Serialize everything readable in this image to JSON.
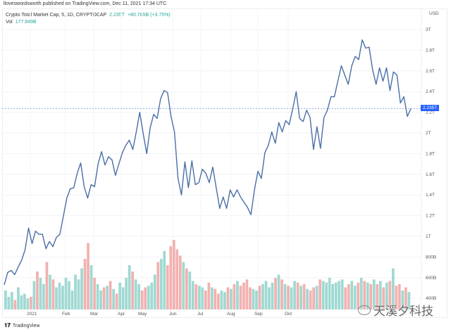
{
  "published": "lloveswordsworth published on TradingView.com, Dec 11, 2021 17:34 UTC",
  "legend": {
    "symbol": "Crypto Total Market Cap, 5, 1D, CRYPTOCAP",
    "last": "2.235T",
    "change": "+80.765B (+3.75%)",
    "vol_label": "Vol",
    "vol_value": "177.649B"
  },
  "footer": {
    "brand": "TradingView"
  },
  "watermark": "天溪夕科技",
  "colors": {
    "line": "#4a6fa5",
    "up": "#26a69a",
    "down": "#ef5350",
    "price_tag": "#2962ff"
  },
  "chart_data": {
    "type": "line",
    "title": "Crypto Total Market Cap, 5, 1D, CRYPTOCAP",
    "ylabel": "USD",
    "y_unit": "T",
    "ylim": [
      0.4,
      3.05
    ],
    "yticks": [
      "3T",
      "2.8T",
      "2.6T",
      "2.4T",
      "2.2T",
      "2T",
      "1.8T",
      "1.6T",
      "1.4T",
      "1.2T",
      "1T",
      "800B",
      "600B",
      "400B"
    ],
    "ytick_values": [
      3,
      2.8,
      2.6,
      2.4,
      2.2,
      2,
      1.8,
      1.6,
      1.4,
      1.2,
      1,
      0.8,
      0.6,
      0.4
    ],
    "xticks": [
      "2021",
      "Feb",
      "Mar",
      "Apr",
      "May",
      "Jun",
      "Jul",
      "Aug",
      "Sep",
      "Oct"
    ],
    "last_price_label": "2.235T",
    "last_price": 2.235,
    "grid": true,
    "series": [
      {
        "values": [
          0.53,
          0.65,
          0.67,
          0.63,
          0.7,
          0.77,
          0.87,
          1.08,
          0.93,
          1.05,
          1.02,
          1.02,
          0.88,
          0.95,
          0.9,
          0.99,
          1.02,
          1.19,
          1.37,
          1.46,
          1.47,
          1.61,
          1.71,
          1.48,
          1.37,
          1.5,
          1.48,
          1.7,
          1.82,
          1.69,
          1.77,
          1.74,
          1.59,
          1.7,
          1.81,
          1.88,
          1.93,
          1.84,
          2.01,
          2.2,
          1.99,
          1.8,
          2.05,
          2.18,
          2.14,
          2.33,
          2.41,
          2.39,
          2.16,
          2.01,
          1.56,
          1.4,
          1.72,
          1.47,
          1.73,
          1.5,
          1.52,
          1.65,
          1.61,
          1.52,
          1.67,
          1.47,
          1.27,
          1.38,
          1.27,
          1.45,
          1.38,
          1.45,
          1.38,
          1.33,
          1.28,
          1.21,
          1.45,
          1.63,
          1.56,
          1.81,
          1.88,
          2.01,
          1.9,
          2.1,
          2.01,
          2.12,
          2.08,
          2.23,
          2.4,
          2.14,
          2.11,
          2.22,
          2.15,
          1.84,
          2.06,
          1.85,
          2.15,
          2.22,
          2.35,
          2.35,
          2.5,
          2.65,
          2.56,
          2.47,
          2.65,
          2.74,
          2.71,
          2.9,
          2.82,
          2.83,
          2.61,
          2.47,
          2.63,
          2.5,
          2.63,
          2.41,
          2.59,
          2.56,
          2.29,
          2.35,
          2.16,
          2.235
        ]
      }
    ],
    "volume": [
      60,
      40,
      55,
      30,
      70,
      45,
      50,
      35,
      40,
      90,
      120,
      100,
      80,
      150,
      110,
      95,
      70,
      85,
      75,
      100,
      90,
      60,
      110,
      95,
      130,
      160,
      210,
      140,
      100,
      80,
      60,
      70,
      75,
      90,
      65,
      50,
      85,
      70,
      100,
      140,
      120,
      95,
      80,
      60,
      70,
      75,
      85,
      110,
      150,
      160,
      185,
      140,
      200,
      220,
      190,
      170,
      150,
      130,
      120,
      90,
      80,
      75,
      70,
      60,
      85,
      70,
      65,
      50,
      60,
      55,
      70,
      65,
      80,
      90,
      75,
      85,
      95,
      70,
      65,
      60,
      75,
      80,
      90,
      70,
      85,
      100,
      110,
      95,
      80,
      75,
      70,
      90,
      85,
      75,
      80,
      65,
      60,
      70,
      75,
      95,
      90,
      85,
      100,
      80,
      85,
      90,
      95,
      70,
      80,
      90,
      75,
      85,
      100,
      90,
      85,
      80,
      95,
      80,
      90,
      70,
      85,
      90,
      130,
      75,
      80,
      60,
      70,
      55
    ]
  }
}
